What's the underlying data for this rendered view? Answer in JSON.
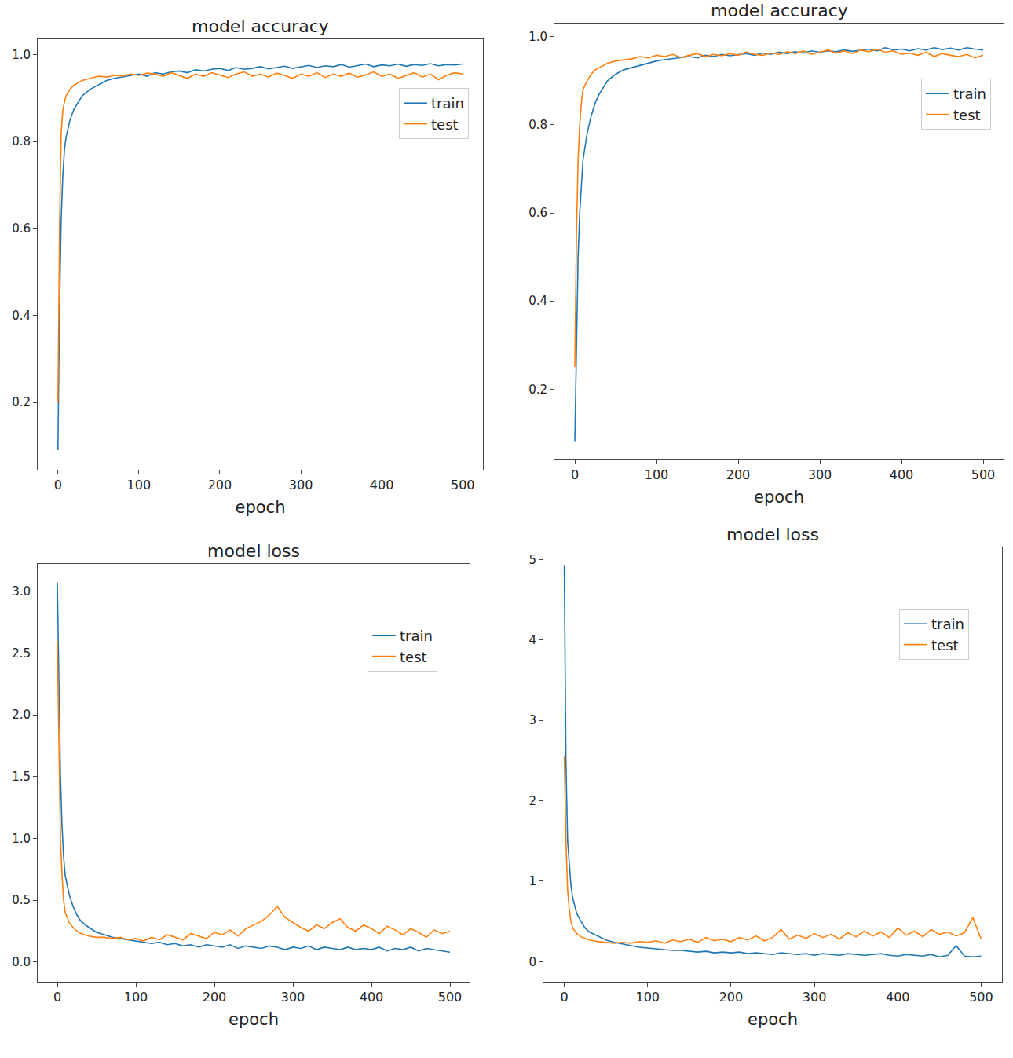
{
  "chart_data": [
    {
      "type": "line",
      "title": "model accuracy",
      "x_label": "epoch",
      "legend": "upper right",
      "grid": false,
      "x": [
        0,
        2,
        4,
        6,
        8,
        10,
        15,
        20,
        25,
        30,
        40,
        50,
        60,
        70,
        80,
        90,
        100,
        110,
        120,
        130,
        140,
        150,
        160,
        170,
        180,
        190,
        200,
        210,
        220,
        230,
        240,
        250,
        260,
        270,
        280,
        290,
        300,
        310,
        320,
        330,
        340,
        350,
        360,
        370,
        380,
        390,
        400,
        410,
        420,
        430,
        440,
        450,
        460,
        470,
        480,
        490,
        500
      ],
      "xlim": [
        -25,
        525
      ],
      "xticks": [
        0,
        100,
        200,
        300,
        400,
        500
      ],
      "ylim": [
        0.045,
        1.035
      ],
      "yticks": [
        0.2,
        0.4,
        0.6,
        0.8,
        {
          "value": 1,
          "label": "1.0"
        }
      ],
      "series": [
        {
          "name": "train",
          "color": "#1f77b4",
          "values": [
            0.09,
            0.42,
            0.62,
            0.72,
            0.78,
            0.81,
            0.85,
            0.875,
            0.89,
            0.905,
            0.92,
            0.93,
            0.94,
            0.945,
            0.948,
            0.952,
            0.955,
            0.95,
            0.958,
            0.955,
            0.96,
            0.962,
            0.958,
            0.965,
            0.962,
            0.966,
            0.968,
            0.963,
            0.97,
            0.966,
            0.968,
            0.972,
            0.967,
            0.97,
            0.973,
            0.968,
            0.972,
            0.975,
            0.97,
            0.974,
            0.972,
            0.977,
            0.971,
            0.975,
            0.978,
            0.972,
            0.976,
            0.974,
            0.978,
            0.973,
            0.977,
            0.975,
            0.979,
            0.974,
            0.977,
            0.976,
            0.978
          ]
        },
        {
          "name": "test",
          "color": "#ff7f0e",
          "values": [
            0.2,
            0.6,
            0.82,
            0.87,
            0.89,
            0.905,
            0.92,
            0.93,
            0.935,
            0.94,
            0.945,
            0.95,
            0.948,
            0.952,
            0.95,
            0.955,
            0.952,
            0.957,
            0.955,
            0.95,
            0.958,
            0.952,
            0.945,
            0.955,
            0.95,
            0.958,
            0.953,
            0.947,
            0.955,
            0.96,
            0.95,
            0.955,
            0.948,
            0.957,
            0.952,
            0.945,
            0.955,
            0.95,
            0.958,
            0.947,
            0.955,
            0.95,
            0.957,
            0.948,
            0.953,
            0.96,
            0.95,
            0.955,
            0.945,
            0.952,
            0.958,
            0.948,
            0.955,
            0.942,
            0.952,
            0.958,
            0.955
          ]
        }
      ]
    },
    {
      "type": "line",
      "title": "model accuracy",
      "x_label": "epoch",
      "legend": "upper right",
      "grid": false,
      "x": [
        0,
        2,
        4,
        6,
        8,
        10,
        15,
        20,
        25,
        30,
        40,
        50,
        60,
        70,
        80,
        90,
        100,
        110,
        120,
        130,
        140,
        150,
        160,
        170,
        180,
        190,
        200,
        210,
        220,
        230,
        240,
        250,
        260,
        270,
        280,
        290,
        300,
        310,
        320,
        330,
        340,
        350,
        360,
        370,
        380,
        390,
        400,
        410,
        420,
        430,
        440,
        450,
        460,
        470,
        480,
        490,
        500
      ],
      "xlim": [
        -25,
        525
      ],
      "xticks": [
        0,
        100,
        200,
        300,
        400,
        500
      ],
      "ylim": [
        0.04,
        1.03
      ],
      "yticks": [
        0.2,
        0.4,
        0.6,
        0.8,
        {
          "value": 1,
          "label": "1.0"
        }
      ],
      "series": [
        {
          "name": "train",
          "color": "#1f77b4",
          "values": [
            0.08,
            0.3,
            0.5,
            0.6,
            0.67,
            0.72,
            0.78,
            0.82,
            0.85,
            0.87,
            0.9,
            0.915,
            0.925,
            0.93,
            0.935,
            0.94,
            0.945,
            0.948,
            0.95,
            0.952,
            0.955,
            0.952,
            0.958,
            0.955,
            0.96,
            0.957,
            0.96,
            0.962,
            0.958,
            0.963,
            0.96,
            0.965,
            0.962,
            0.966,
            0.963,
            0.968,
            0.965,
            0.968,
            0.966,
            0.97,
            0.967,
            0.97,
            0.972,
            0.968,
            0.975,
            0.97,
            0.972,
            0.968,
            0.973,
            0.97,
            0.975,
            0.971,
            0.974,
            0.97,
            0.975,
            0.972,
            0.97
          ]
        },
        {
          "name": "test",
          "color": "#ff7f0e",
          "values": [
            0.25,
            0.55,
            0.72,
            0.8,
            0.85,
            0.88,
            0.9,
            0.915,
            0.925,
            0.93,
            0.94,
            0.945,
            0.948,
            0.95,
            0.955,
            0.952,
            0.958,
            0.955,
            0.96,
            0.953,
            0.958,
            0.962,
            0.955,
            0.96,
            0.957,
            0.962,
            0.958,
            0.965,
            0.96,
            0.958,
            0.963,
            0.96,
            0.966,
            0.962,
            0.968,
            0.96,
            0.965,
            0.97,
            0.963,
            0.968,
            0.962,
            0.97,
            0.966,
            0.972,
            0.965,
            0.968,
            0.96,
            0.963,
            0.958,
            0.965,
            0.955,
            0.962,
            0.958,
            0.955,
            0.96,
            0.952,
            0.958
          ]
        }
      ]
    },
    {
      "type": "line",
      "title": "model loss",
      "x_label": "epoch",
      "legend": "upper right",
      "grid": false,
      "x": [
        0,
        2,
        4,
        6,
        8,
        10,
        15,
        20,
        25,
        30,
        40,
        50,
        60,
        70,
        80,
        90,
        100,
        110,
        120,
        130,
        140,
        150,
        160,
        170,
        180,
        190,
        200,
        210,
        220,
        230,
        240,
        250,
        260,
        270,
        280,
        290,
        300,
        310,
        320,
        330,
        340,
        350,
        360,
        370,
        380,
        390,
        400,
        410,
        420,
        430,
        440,
        450,
        460,
        470,
        480,
        490,
        500
      ],
      "xlim": [
        -25,
        525
      ],
      "xticks": [
        0,
        100,
        200,
        300,
        400,
        500
      ],
      "ylim": [
        -0.16,
        3.22
      ],
      "yticks": [
        {
          "value": 0,
          "label": "0.0"
        },
        0.5,
        {
          "value": 1,
          "label": "1.0"
        },
        1.5,
        {
          "value": 2,
          "label": "2.0"
        },
        2.5,
        {
          "value": 3,
          "label": "3.0"
        }
      ],
      "series": [
        {
          "name": "train",
          "color": "#1f77b4",
          "values": [
            3.07,
            2.2,
            1.5,
            1.1,
            0.85,
            0.7,
            0.55,
            0.45,
            0.38,
            0.33,
            0.28,
            0.24,
            0.22,
            0.2,
            0.19,
            0.18,
            0.17,
            0.16,
            0.15,
            0.16,
            0.14,
            0.15,
            0.13,
            0.14,
            0.12,
            0.14,
            0.13,
            0.12,
            0.14,
            0.11,
            0.13,
            0.12,
            0.11,
            0.13,
            0.12,
            0.1,
            0.12,
            0.11,
            0.13,
            0.1,
            0.12,
            0.11,
            0.1,
            0.12,
            0.1,
            0.11,
            0.1,
            0.12,
            0.09,
            0.11,
            0.1,
            0.12,
            0.09,
            0.11,
            0.1,
            0.09,
            0.08
          ]
        },
        {
          "name": "test",
          "color": "#ff7f0e",
          "values": [
            2.6,
            1.7,
            1.0,
            0.7,
            0.5,
            0.4,
            0.32,
            0.28,
            0.25,
            0.23,
            0.21,
            0.2,
            0.2,
            0.19,
            0.2,
            0.18,
            0.19,
            0.17,
            0.2,
            0.18,
            0.22,
            0.2,
            0.18,
            0.23,
            0.21,
            0.19,
            0.24,
            0.22,
            0.26,
            0.21,
            0.27,
            0.3,
            0.33,
            0.38,
            0.45,
            0.36,
            0.32,
            0.28,
            0.25,
            0.3,
            0.27,
            0.32,
            0.35,
            0.28,
            0.25,
            0.3,
            0.27,
            0.23,
            0.29,
            0.26,
            0.22,
            0.27,
            0.24,
            0.2,
            0.26,
            0.23,
            0.25
          ]
        }
      ]
    },
    {
      "type": "line",
      "title": "model loss",
      "x_label": "epoch",
      "legend": "upper right",
      "grid": false,
      "x": [
        0,
        2,
        4,
        6,
        8,
        10,
        15,
        20,
        25,
        30,
        40,
        50,
        60,
        70,
        80,
        90,
        100,
        110,
        120,
        130,
        140,
        150,
        160,
        170,
        180,
        190,
        200,
        210,
        220,
        230,
        240,
        250,
        260,
        270,
        280,
        290,
        300,
        310,
        320,
        330,
        340,
        350,
        360,
        370,
        380,
        390,
        400,
        410,
        420,
        430,
        440,
        450,
        460,
        470,
        480,
        490,
        500
      ],
      "xlim": [
        -25,
        525
      ],
      "xticks": [
        0,
        100,
        200,
        300,
        400,
        500
      ],
      "ylim": [
        -0.25,
        5.15
      ],
      "yticks": [
        0,
        1,
        2,
        3,
        4,
        5
      ],
      "series": [
        {
          "name": "train",
          "color": "#1f77b4",
          "values": [
            4.93,
            2.5,
            1.5,
            1.2,
            0.95,
            0.8,
            0.6,
            0.5,
            0.42,
            0.37,
            0.32,
            0.27,
            0.24,
            0.22,
            0.2,
            0.18,
            0.17,
            0.16,
            0.15,
            0.14,
            0.14,
            0.13,
            0.12,
            0.13,
            0.11,
            0.12,
            0.11,
            0.12,
            0.1,
            0.11,
            0.1,
            0.09,
            0.11,
            0.1,
            0.09,
            0.1,
            0.08,
            0.1,
            0.09,
            0.08,
            0.1,
            0.09,
            0.08,
            0.09,
            0.1,
            0.08,
            0.07,
            0.09,
            0.08,
            0.07,
            0.09,
            0.06,
            0.08,
            0.2,
            0.07,
            0.06,
            0.07
          ]
        },
        {
          "name": "test",
          "color": "#ff7f0e",
          "values": [
            2.55,
            1.5,
            0.9,
            0.65,
            0.5,
            0.42,
            0.35,
            0.31,
            0.29,
            0.27,
            0.25,
            0.24,
            0.23,
            0.24,
            0.23,
            0.25,
            0.24,
            0.26,
            0.23,
            0.27,
            0.25,
            0.28,
            0.24,
            0.3,
            0.26,
            0.28,
            0.25,
            0.3,
            0.27,
            0.32,
            0.26,
            0.3,
            0.4,
            0.28,
            0.33,
            0.29,
            0.35,
            0.3,
            0.34,
            0.28,
            0.36,
            0.31,
            0.38,
            0.32,
            0.37,
            0.3,
            0.42,
            0.33,
            0.38,
            0.31,
            0.4,
            0.34,
            0.37,
            0.32,
            0.36,
            0.55,
            0.28
          ]
        }
      ]
    }
  ]
}
